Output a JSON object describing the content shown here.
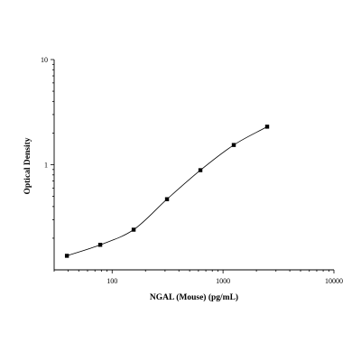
{
  "chart_data": {
    "type": "scatter",
    "title": "",
    "xlabel": "NGAL (Mouse) (pg/mL)",
    "ylabel": "Optical Density",
    "xscale": "log",
    "yscale": "log",
    "xlim": [
      30,
      10000
    ],
    "ylim": [
      0.1,
      10
    ],
    "x_ticks": [
      {
        "value": 100,
        "label": "100"
      },
      {
        "value": 1000,
        "label": "1000"
      },
      {
        "value": 10000,
        "label": "10000"
      }
    ],
    "y_ticks": [
      {
        "value": 1,
        "label": "1"
      },
      {
        "value": 10,
        "label": "10"
      }
    ],
    "grid": false,
    "legend": "none",
    "series": [
      {
        "x": [
          39.1,
          78.1,
          156.3,
          312.5,
          625,
          1250,
          2500
        ],
        "y": [
          0.136,
          0.173,
          0.241,
          0.47,
          0.887,
          1.54,
          2.3
        ],
        "marker": "square",
        "fit": "four-parameter logistic"
      }
    ]
  }
}
